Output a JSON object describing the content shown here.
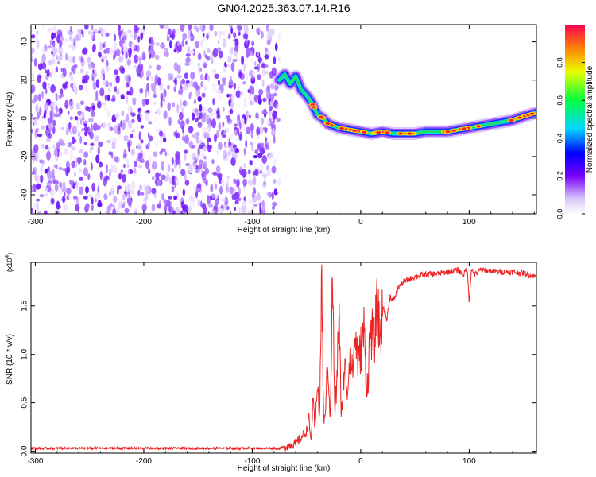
{
  "title": "GN04.2025.363.07.14.R16",
  "chart_data": [
    {
      "type": "heatmap",
      "xlabel": "Height of straight line (km)",
      "ylabel": "Frequency (Hz)",
      "xlim": [
        -304,
        162
      ],
      "ylim": [
        -50,
        49
      ],
      "xticks": [
        -300,
        -200,
        -100,
        0,
        100
      ],
      "yticks": [
        -40,
        -20,
        0,
        20,
        40
      ],
      "noise_region_x": [
        -304,
        -75
      ],
      "ridge": {
        "x": [
          -75,
          -70,
          -65,
          -60,
          -55,
          -50,
          -45,
          -40,
          -35,
          -30,
          -20,
          -10,
          0,
          10,
          20,
          30,
          40,
          50,
          60,
          70,
          80,
          90,
          100,
          110,
          120,
          130,
          140,
          150,
          162
        ],
        "y": [
          20,
          23,
          18,
          22,
          15,
          12,
          8,
          2,
          0,
          -3,
          -5,
          -6,
          -7,
          -8,
          -7,
          -8,
          -8,
          -8,
          -7,
          -7,
          -7,
          -6,
          -5,
          -4,
          -3,
          -2,
          -1,
          1,
          3
        ]
      },
      "colorbar": {
        "label": "Normalized spectral amplitude",
        "ticks": [
          0.0,
          0.2,
          0.4,
          0.6,
          0.8
        ],
        "tick_labels": [
          "0.0",
          "0.2",
          "0.4",
          "0.6",
          "0.8"
        ]
      }
    },
    {
      "type": "line",
      "xlabel": "Height of straight line (km)",
      "ylabel": "SNR (10 * v/v)",
      "multiplier_label": "(x10",
      "multiplier_exp": "4",
      "xlim": [
        -304,
        162
      ],
      "ylim": [
        -0.02,
        1.95
      ],
      "xticks": [
        -300,
        -200,
        -100,
        0,
        100
      ],
      "yticks": [
        0.0,
        0.5,
        1.0,
        1.5
      ],
      "ytick_labels": [
        "0.0",
        "0.5",
        "1.0",
        "1.5"
      ],
      "color": "#ee2222",
      "series": [
        {
          "x": [
            -304,
            -150,
            -75,
            -60,
            -50,
            -48,
            -46,
            -44,
            -42,
            -40,
            -38,
            -36,
            -34,
            -32,
            -30,
            -28,
            -26,
            -24,
            -22,
            -20,
            -18,
            -15,
            -12,
            -10,
            -8,
            -5,
            -2,
            0,
            3,
            6,
            9,
            12,
            15,
            18,
            21,
            24,
            27,
            30,
            35,
            40,
            50,
            60,
            70,
            80,
            90,
            95,
            98,
            100,
            102,
            105,
            110,
            120,
            130,
            140,
            150,
            162
          ],
          "y": [
            0.03,
            0.03,
            0.03,
            0.08,
            0.2,
            0.35,
            0.1,
            0.5,
            0.2,
            0.8,
            0.3,
            1.8,
            0.2,
            0.6,
            0.9,
            0.3,
            1.85,
            0.4,
            0.7,
            1.55,
            0.3,
            0.9,
            0.6,
            1.1,
            0.8,
            1.2,
            0.9,
            1.05,
            1.25,
            0.6,
            1.3,
            1.1,
            1.45,
            1.2,
            1.5,
            1.35,
            1.6,
            1.55,
            1.7,
            1.75,
            1.8,
            1.83,
            1.83,
            1.85,
            1.87,
            1.82,
            1.9,
            1.55,
            1.88,
            1.82,
            1.87,
            1.86,
            1.85,
            1.85,
            1.84,
            1.8
          ]
        }
      ]
    }
  ]
}
